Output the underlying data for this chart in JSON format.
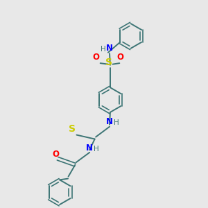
{
  "background_color": "#e8e8e8",
  "bond_color": "#3d7575",
  "atom_colors": {
    "N": "#0000ff",
    "S": "#cccc00",
    "O": "#ff0000",
    "H": "#3d7575"
  },
  "figsize": [
    3.0,
    3.0
  ],
  "dpi": 100
}
